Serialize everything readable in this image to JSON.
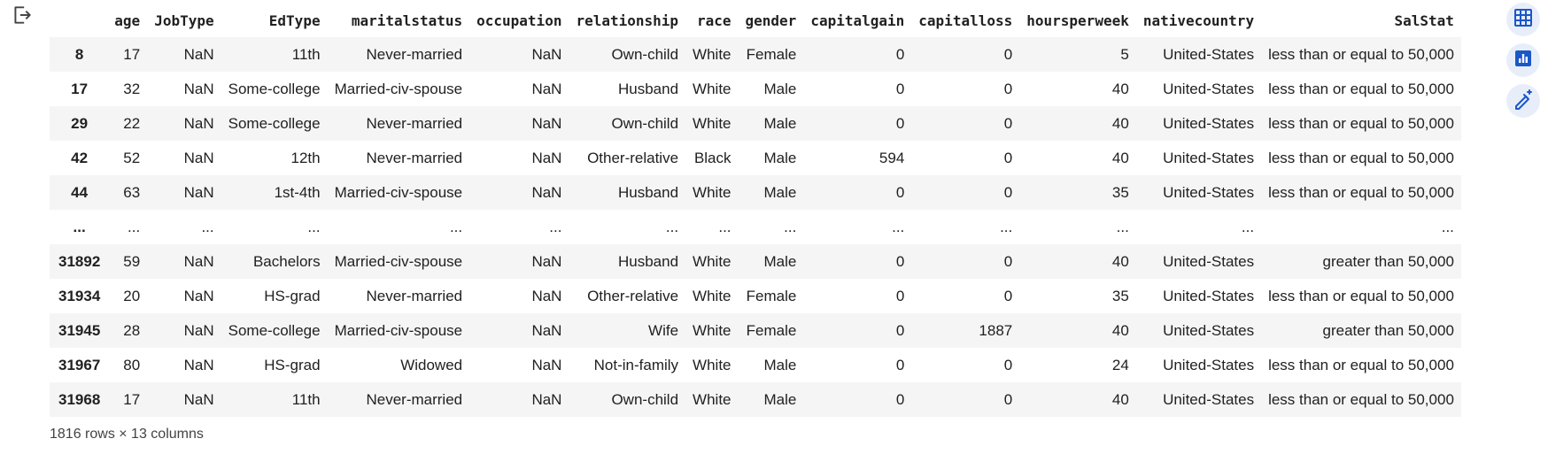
{
  "columns": [
    "",
    "age",
    "JobType",
    "EdType",
    "maritalstatus",
    "occupation",
    "relationship",
    "race",
    "gender",
    "capitalgain",
    "capitalloss",
    "hoursperweek",
    "nativecountry",
    "SalStat"
  ],
  "rows": [
    [
      "8",
      "17",
      "NaN",
      "11th",
      "Never-married",
      "NaN",
      "Own-child",
      "White",
      "Female",
      "0",
      "0",
      "5",
      "United-States",
      "less than or equal to 50,000"
    ],
    [
      "17",
      "32",
      "NaN",
      "Some-college",
      "Married-civ-spouse",
      "NaN",
      "Husband",
      "White",
      "Male",
      "0",
      "0",
      "40",
      "United-States",
      "less than or equal to 50,000"
    ],
    [
      "29",
      "22",
      "NaN",
      "Some-college",
      "Never-married",
      "NaN",
      "Own-child",
      "White",
      "Male",
      "0",
      "0",
      "40",
      "United-States",
      "less than or equal to 50,000"
    ],
    [
      "42",
      "52",
      "NaN",
      "12th",
      "Never-married",
      "NaN",
      "Other-relative",
      "Black",
      "Male",
      "594",
      "0",
      "40",
      "United-States",
      "less than or equal to 50,000"
    ],
    [
      "44",
      "63",
      "NaN",
      "1st-4th",
      "Married-civ-spouse",
      "NaN",
      "Husband",
      "White",
      "Male",
      "0",
      "0",
      "35",
      "United-States",
      "less than or equal to 50,000"
    ],
    [
      "...",
      "...",
      "...",
      "...",
      "...",
      "...",
      "...",
      "...",
      "...",
      "...",
      "...",
      "...",
      "...",
      "..."
    ],
    [
      "31892",
      "59",
      "NaN",
      "Bachelors",
      "Married-civ-spouse",
      "NaN",
      "Husband",
      "White",
      "Male",
      "0",
      "0",
      "40",
      "United-States",
      "greater than 50,000"
    ],
    [
      "31934",
      "20",
      "NaN",
      "HS-grad",
      "Never-married",
      "NaN",
      "Other-relative",
      "White",
      "Female",
      "0",
      "0",
      "35",
      "United-States",
      "less than or equal to 50,000"
    ],
    [
      "31945",
      "28",
      "NaN",
      "Some-college",
      "Married-civ-spouse",
      "NaN",
      "Wife",
      "White",
      "Female",
      "0",
      "1887",
      "40",
      "United-States",
      "greater than 50,000"
    ],
    [
      "31967",
      "80",
      "NaN",
      "HS-grad",
      "Widowed",
      "NaN",
      "Not-in-family",
      "White",
      "Male",
      "0",
      "0",
      "24",
      "United-States",
      "less than or equal to 50,000"
    ],
    [
      "31968",
      "17",
      "NaN",
      "11th",
      "Never-married",
      "NaN",
      "Own-child",
      "White",
      "Male",
      "0",
      "0",
      "40",
      "United-States",
      "less than or equal to 50,000"
    ]
  ],
  "footer": "1816 rows × 13 columns",
  "icons": {
    "output_action": "output-action-icon",
    "table_view": "table-view-icon",
    "chart_suggest": "chart-suggest-icon",
    "edit_wand": "edit-wand-icon"
  },
  "colors": {
    "accent": "#1a57c8",
    "row_alt": "#f5f5f5",
    "button_bg": "#e8eef9"
  }
}
